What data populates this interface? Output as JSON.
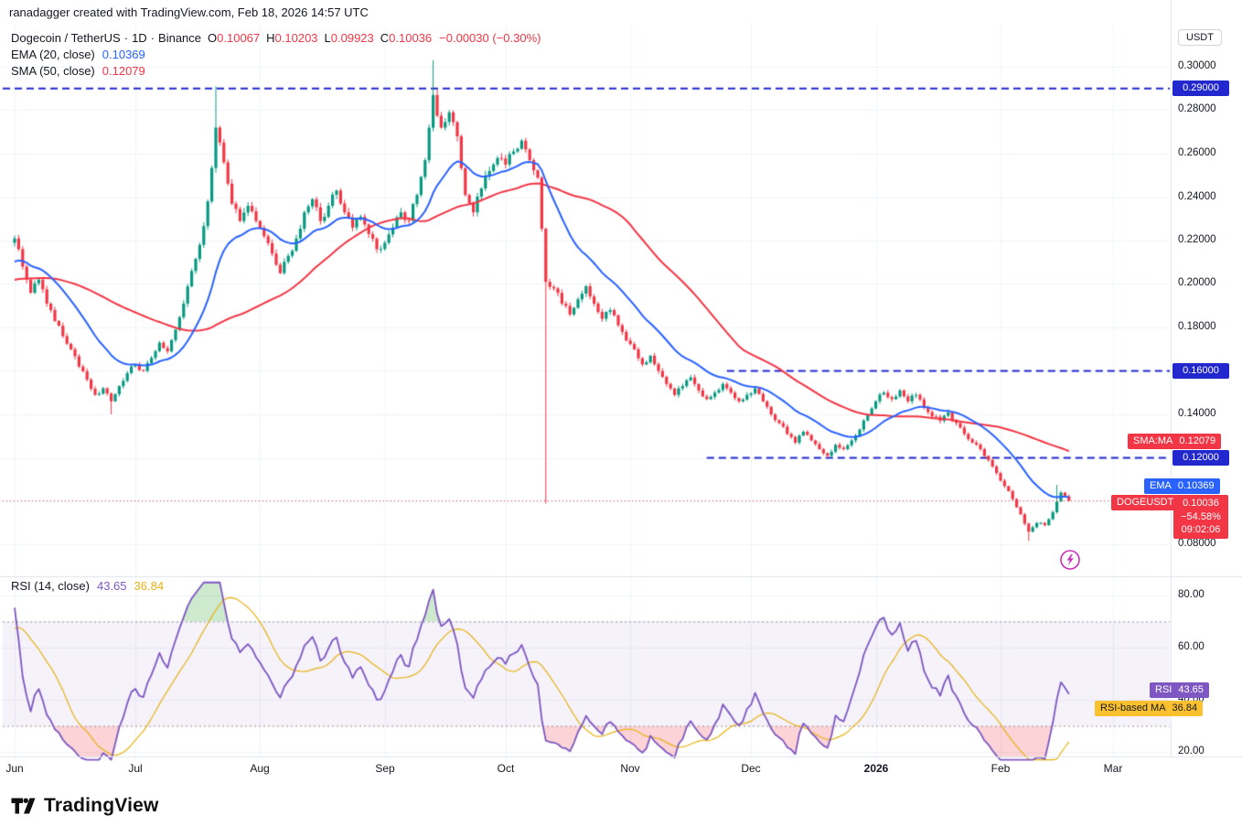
{
  "header": {
    "attribution": "ranadagger created with TradingView.com, Feb 18, 2026 14:57 UTC"
  },
  "symbol_row": {
    "name": "Dogecoin / TetherUS",
    "sep": "·",
    "interval": "1D",
    "exchange": "Binance",
    "ohlc": {
      "o_label": "O",
      "o": "0.10067",
      "h_label": "H",
      "h": "0.10203",
      "l_label": "L",
      "l": "0.09923",
      "c_label": "C",
      "c": "0.10036",
      "change": "−0.00030 (−0.30%)"
    }
  },
  "ema_row": {
    "label": "EMA (20, close)",
    "value": "0.10369"
  },
  "sma_row": {
    "label": "SMA (50, close)",
    "value": "0.12079"
  },
  "rsi_row": {
    "label": "RSI (14, close)",
    "value": "43.65",
    "ma_value": "36.84"
  },
  "axis": {
    "unit": "USDT",
    "price_ticks": [
      "0.30000",
      "0.28000",
      "0.26000",
      "0.24000",
      "0.22000",
      "0.20000",
      "0.18000",
      "0.16000",
      "0.14000",
      "0.12000",
      "0.10000",
      "0.08000"
    ],
    "rsi_ticks": [
      "80.00",
      "60.00",
      "40.00",
      "20.00"
    ]
  },
  "badges": {
    "level1": "0.29000",
    "level2": "0.16000",
    "level3": "0.12000",
    "sma_label": "SMA:MA",
    "sma_value": "0.12079",
    "ema_label": "EMA",
    "ema_value": "0.10369",
    "symbol_label": "DOGEUSDT",
    "price": "0.10036",
    "change_pct": "−54.58%",
    "countdown": "09:02:06",
    "rsi_label": "RSI",
    "rsi_value": "43.65",
    "rsi_ma_label": "RSI-based MA",
    "rsi_ma_value": "36.84"
  },
  "footer": {
    "brand": "TradingView"
  },
  "colors": {
    "up": "#089981",
    "down": "#F23645",
    "ema": "#2962FF",
    "sma": "#F23645",
    "level": "#2228CE",
    "last_price": "#F23645",
    "rsi": "#7E57C2",
    "rsi_ma": "#E8B213",
    "badge_yellow": "#FBC02D",
    "band_fill": "rgba(126,87,194,0.08)",
    "overbought_fill": "rgba(76,175,80,0.28)",
    "oversold_fill": "rgba(242,54,69,0.22)",
    "grid": "#F0F3FA",
    "separator": "#E0E3EB",
    "text": "#131722",
    "muted": "#9598A1",
    "flash": "#CB30BA"
  },
  "chart_data": {
    "type": "candlestick",
    "symbol": "DOGEUSDT",
    "interval": "1D",
    "exchange": "Binance",
    "title": "Dogecoin / TetherUS · 1D · Binance",
    "x_start_date": "2025-06-01",
    "x_days_per_step": 2,
    "months": [
      {
        "label": "Jun",
        "day": 0
      },
      {
        "label": "Jul",
        "day": 30
      },
      {
        "label": "Aug",
        "day": 61
      },
      {
        "label": "Sep",
        "day": 92
      },
      {
        "label": "Oct",
        "day": 122
      },
      {
        "label": "Nov",
        "day": 153
      },
      {
        "label": "Dec",
        "day": 183
      },
      {
        "label": "2026",
        "day": 214,
        "bold": true
      },
      {
        "label": "Feb",
        "day": 245
      },
      {
        "label": "Mar",
        "day": 273
      }
    ],
    "price_axis": {
      "min": 0.0655,
      "max": 0.318,
      "grid_step": 0.02
    },
    "prehistory_closes_2d": [
      0.196,
      0.199,
      0.194,
      0.197,
      0.193,
      0.196,
      0.199,
      0.195,
      0.198,
      0.194,
      0.197,
      0.2,
      0.196,
      0.199,
      0.203,
      0.199,
      0.202,
      0.206,
      0.203,
      0.207,
      0.211,
      0.214,
      0.21,
      0.215,
      0.219
    ],
    "closes_2d": [
      0.221,
      0.208,
      0.196,
      0.202,
      0.191,
      0.183,
      0.176,
      0.17,
      0.162,
      0.156,
      0.149,
      0.152,
      0.146,
      0.153,
      0.159,
      0.163,
      0.16,
      0.166,
      0.173,
      0.169,
      0.179,
      0.191,
      0.206,
      0.218,
      0.238,
      0.272,
      0.256,
      0.237,
      0.229,
      0.236,
      0.229,
      0.222,
      0.214,
      0.205,
      0.213,
      0.221,
      0.233,
      0.239,
      0.229,
      0.236,
      0.243,
      0.233,
      0.226,
      0.231,
      0.223,
      0.216,
      0.219,
      0.226,
      0.233,
      0.229,
      0.241,
      0.257,
      0.287,
      0.272,
      0.279,
      0.268,
      0.241,
      0.233,
      0.244,
      0.252,
      0.258,
      0.255,
      0.261,
      0.266,
      0.257,
      0.249,
      0.201,
      0.198,
      0.191,
      0.186,
      0.193,
      0.199,
      0.191,
      0.184,
      0.188,
      0.181,
      0.174,
      0.17,
      0.163,
      0.167,
      0.16,
      0.154,
      0.149,
      0.153,
      0.157,
      0.151,
      0.147,
      0.15,
      0.154,
      0.15,
      0.146,
      0.149,
      0.152,
      0.146,
      0.14,
      0.136,
      0.131,
      0.127,
      0.132,
      0.128,
      0.124,
      0.121,
      0.126,
      0.124,
      0.128,
      0.133,
      0.14,
      0.146,
      0.15,
      0.147,
      0.151,
      0.146,
      0.149,
      0.143,
      0.139,
      0.137,
      0.141,
      0.136,
      0.131,
      0.127,
      0.124,
      0.119,
      0.113,
      0.107,
      0.101,
      0.094,
      0.086,
      0.09,
      0.089,
      0.095,
      0.104,
      0.10036
    ],
    "extreme_wicks": {
      "24": {
        "l": 0.14
      },
      "50": {
        "h": 0.291
      },
      "104": {
        "h": 0.303
      },
      "132": {
        "l": 0.099
      },
      "252": {
        "l": 0.0818
      },
      "259": {
        "h": 0.1075
      }
    },
    "levels": [
      {
        "price": 0.29,
        "from_day": -3,
        "label": "0.29000"
      },
      {
        "price": 0.16,
        "from_day": 177,
        "label": "0.16000"
      },
      {
        "price": 0.12,
        "from_day": 172,
        "label": "0.12000"
      }
    ],
    "last_price": 0.10036,
    "overlays": [
      {
        "name": "EMA",
        "period": 20,
        "value": 0.10369
      },
      {
        "name": "SMA",
        "period": 50,
        "value": 0.12079
      }
    ],
    "rsi": {
      "period": 14,
      "ma_period": 14,
      "band": [
        30,
        70
      ],
      "current": 43.65,
      "ma_current": 36.84,
      "ticks": [
        80,
        60,
        40,
        20
      ]
    }
  }
}
